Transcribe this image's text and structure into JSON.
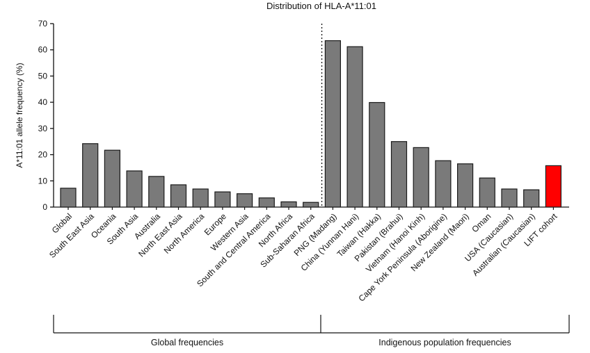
{
  "chart_data": {
    "type": "bar",
    "title": "Distribution of HLA-A*11:01",
    "ylabel": "A*11:01 allele frequency (%)",
    "xlabel": "",
    "ylim": [
      0,
      70
    ],
    "yticks": [
      0,
      10,
      20,
      30,
      40,
      50,
      60,
      70
    ],
    "grid": false,
    "categories": [
      "Global",
      "South East Asia",
      "Oceania",
      "South Asia",
      "Australia",
      "North East Asia",
      "North America",
      "Europe",
      "Western Asia",
      "South and Central America",
      "North Africa",
      "Sub-Saharan Africa",
      "PNG (Madang)",
      "China (Yunnan Hani)",
      "Taiwan (Hakka)",
      "Pakistan (Brahui)",
      "Vietnam (Hanoi Kinh)",
      "Cape York Peninsula (Aborigine)",
      "New Zealand (Maori)",
      "Oman",
      "USA (Caucasian)",
      "Australian (Caucasian)",
      "LIFT cohort"
    ],
    "values": [
      7.2,
      24.2,
      21.7,
      13.8,
      11.7,
      8.5,
      6.9,
      5.8,
      5.1,
      3.5,
      2.0,
      1.8,
      63.5,
      61.2,
      39.9,
      25.0,
      22.7,
      17.7,
      16.5,
      11.1,
      6.9,
      6.6,
      15.8
    ],
    "colors": {
      "default": "#7a7a7a",
      "highlight": "#ff0000",
      "edge": "#1a1a1a"
    },
    "highlight_category": "LIFT cohort",
    "divider_after_index": 11,
    "groups": [
      {
        "label": "Global frequencies",
        "from": 0,
        "to": 11
      },
      {
        "label": "Indigenous population frequencies",
        "from": 12,
        "to": 22
      }
    ]
  }
}
